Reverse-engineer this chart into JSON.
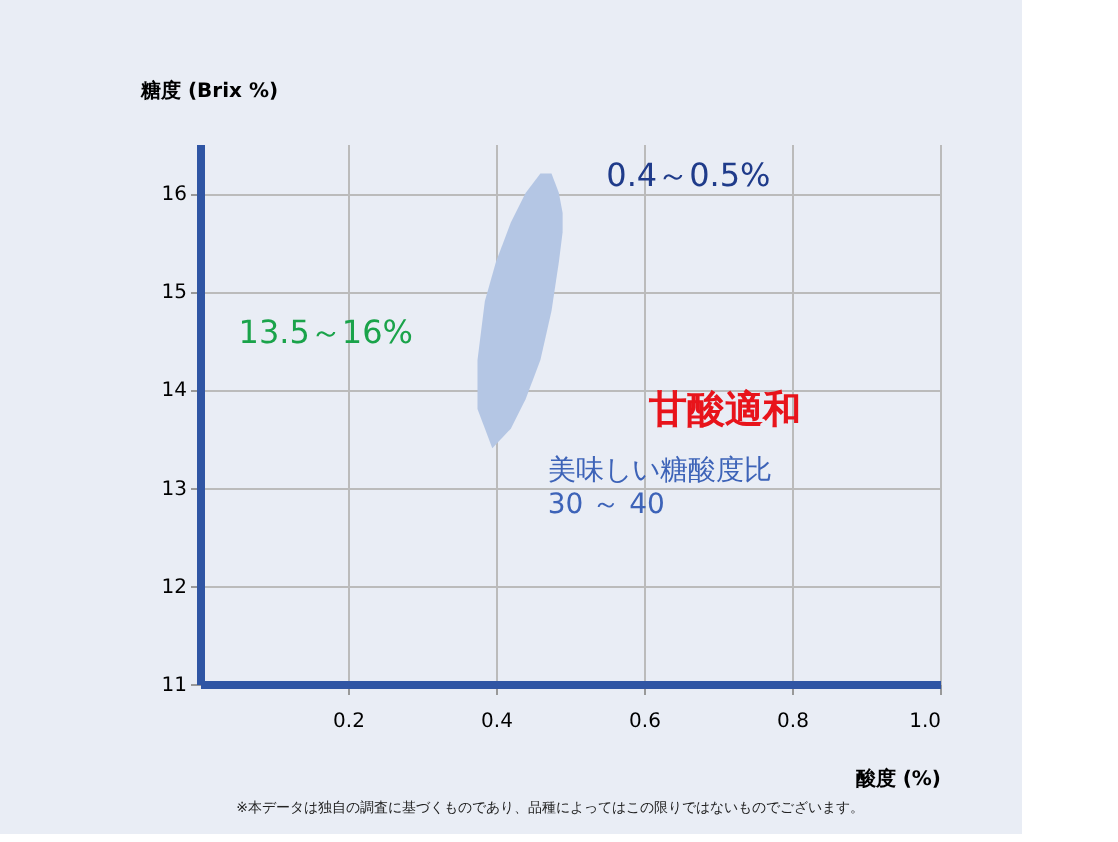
{
  "chart_data": {
    "type": "area",
    "xlabel": "酸度 (%)",
    "ylabel": "糖度 (Brix %)",
    "series": [
      {
        "color": "#b4c6e4",
        "x": [
          0.395,
          0.375,
          0.375,
          0.385,
          0.4,
          0.42,
          0.44,
          0.46,
          0.475,
          0.485,
          0.49,
          0.49,
          0.485,
          0.475,
          0.46,
          0.44,
          0.42,
          0.395
        ],
        "values": [
          13.4,
          13.8,
          14.3,
          14.9,
          15.3,
          15.7,
          16.0,
          16.2,
          16.2,
          16.0,
          15.8,
          15.6,
          15.3,
          14.8,
          14.3,
          13.9,
          13.6,
          13.4
        ]
      }
    ],
    "xlim": [
      0,
      1.0
    ],
    "xticks": [
      0.2,
      0.4,
      0.6,
      0.8,
      {
        "value": 1.0,
        "label": "1.0"
      }
    ],
    "ylim": [
      11,
      16.5
    ],
    "yticks": [
      11,
      12,
      13,
      14,
      15,
      16
    ],
    "grid": true,
    "annotations": [
      "0.4～0.5%",
      "13.5～16%",
      "甘酸適和",
      "美味しい糖酸度比\n30 ～ 40",
      "※本データは独自の調査に基づくものであり、品種によってはこの限りではないものでございます。"
    ]
  }
}
